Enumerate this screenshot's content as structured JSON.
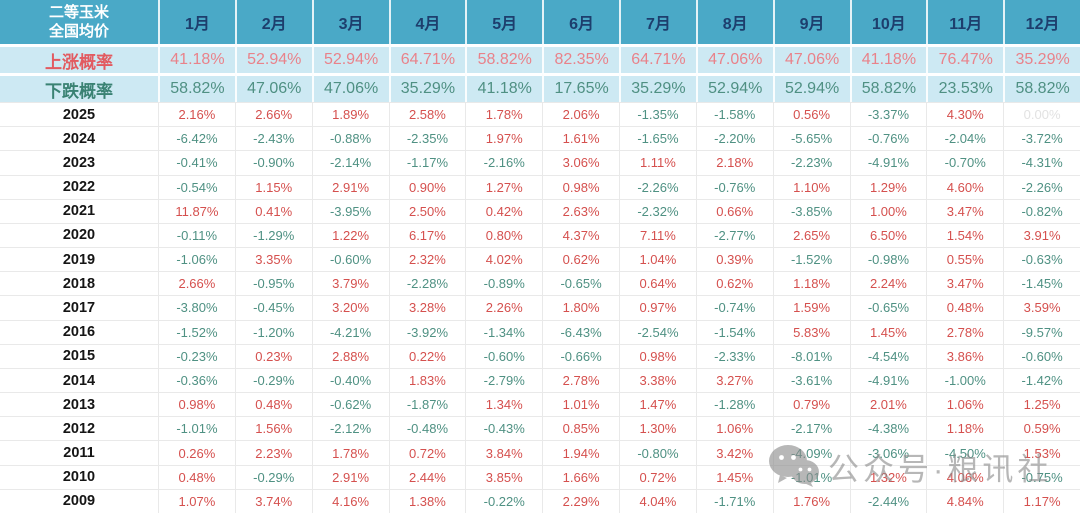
{
  "chart_data": {
    "type": "table",
    "corner_header": {
      "line1": "二等玉米",
      "line2": "全国均价"
    },
    "months": [
      "1月",
      "2月",
      "3月",
      "4月",
      "5月",
      "6月",
      "7月",
      "8月",
      "9月",
      "10月",
      "11月",
      "12月"
    ],
    "rise_probability": {
      "label": "上涨概率",
      "values": [
        "41.18%",
        "52.94%",
        "52.94%",
        "64.71%",
        "58.82%",
        "82.35%",
        "64.71%",
        "47.06%",
        "47.06%",
        "41.18%",
        "76.47%",
        "35.29%"
      ]
    },
    "fall_probability": {
      "label": "下跌概率",
      "values": [
        "58.82%",
        "47.06%",
        "47.06%",
        "35.29%",
        "41.18%",
        "17.65%",
        "35.29%",
        "52.94%",
        "52.94%",
        "58.82%",
        "23.53%",
        "58.82%"
      ]
    },
    "years": [
      {
        "year": "2025",
        "values": [
          "2.16%",
          "2.66%",
          "1.89%",
          "2.58%",
          "1.78%",
          "2.06%",
          "-1.35%",
          "-1.58%",
          "0.56%",
          "-3.37%",
          "4.30%",
          "0.00%"
        ]
      },
      {
        "year": "2024",
        "values": [
          "-6.42%",
          "-2.43%",
          "-0.88%",
          "-2.35%",
          "1.97%",
          "1.61%",
          "-1.65%",
          "-2.20%",
          "-5.65%",
          "-0.76%",
          "-2.04%",
          "-3.72%"
        ]
      },
      {
        "year": "2023",
        "values": [
          "-0.41%",
          "-0.90%",
          "-2.14%",
          "-1.17%",
          "-2.16%",
          "3.06%",
          "1.11%",
          "2.18%",
          "-2.23%",
          "-4.91%",
          "-0.70%",
          "-4.31%"
        ]
      },
      {
        "year": "2022",
        "values": [
          "-0.54%",
          "1.15%",
          "2.91%",
          "0.90%",
          "1.27%",
          "0.98%",
          "-2.26%",
          "-0.76%",
          "1.10%",
          "1.29%",
          "4.60%",
          "-2.26%"
        ]
      },
      {
        "year": "2021",
        "values": [
          "11.87%",
          "0.41%",
          "-3.95%",
          "2.50%",
          "0.42%",
          "2.63%",
          "-2.32%",
          "0.66%",
          "-3.85%",
          "1.00%",
          "3.47%",
          "-0.82%"
        ]
      },
      {
        "year": "2020",
        "values": [
          "-0.11%",
          "-1.29%",
          "1.22%",
          "6.17%",
          "0.80%",
          "4.37%",
          "7.11%",
          "-2.77%",
          "2.65%",
          "6.50%",
          "1.54%",
          "3.91%"
        ]
      },
      {
        "year": "2019",
        "values": [
          "-1.06%",
          "3.35%",
          "-0.60%",
          "2.32%",
          "4.02%",
          "0.62%",
          "1.04%",
          "0.39%",
          "-1.52%",
          "-0.98%",
          "0.55%",
          "-0.63%"
        ]
      },
      {
        "year": "2018",
        "values": [
          "2.66%",
          "-0.95%",
          "3.79%",
          "-2.28%",
          "-0.89%",
          "-0.65%",
          "0.64%",
          "0.62%",
          "1.18%",
          "2.24%",
          "3.47%",
          "-1.45%"
        ]
      },
      {
        "year": "2017",
        "values": [
          "-3.80%",
          "-0.45%",
          "3.20%",
          "3.28%",
          "2.26%",
          "1.80%",
          "0.97%",
          "-0.74%",
          "1.59%",
          "-0.65%",
          "0.48%",
          "3.59%"
        ]
      },
      {
        "year": "2016",
        "values": [
          "-1.52%",
          "-1.20%",
          "-4.21%",
          "-3.92%",
          "-1.34%",
          "-6.43%",
          "-2.54%",
          "-1.54%",
          "5.83%",
          "1.45%",
          "2.78%",
          "-9.57%"
        ]
      },
      {
        "year": "2015",
        "values": [
          "-0.23%",
          "0.23%",
          "2.88%",
          "0.22%",
          "-0.60%",
          "-0.66%",
          "0.98%",
          "-2.33%",
          "-8.01%",
          "-4.54%",
          "3.86%",
          "-0.60%"
        ]
      },
      {
        "year": "2014",
        "values": [
          "-0.36%",
          "-0.29%",
          "-0.40%",
          "1.83%",
          "-2.79%",
          "2.78%",
          "3.38%",
          "3.27%",
          "-3.61%",
          "-4.91%",
          "-1.00%",
          "-1.42%"
        ]
      },
      {
        "year": "2013",
        "values": [
          "0.98%",
          "0.48%",
          "-0.62%",
          "-1.87%",
          "1.34%",
          "1.01%",
          "1.47%",
          "-1.28%",
          "0.79%",
          "2.01%",
          "1.06%",
          "1.25%"
        ]
      },
      {
        "year": "2012",
        "values": [
          "-1.01%",
          "1.56%",
          "-2.12%",
          "-0.48%",
          "-0.43%",
          "0.85%",
          "1.30%",
          "1.06%",
          "-2.17%",
          "-4.38%",
          "1.18%",
          "0.59%"
        ]
      },
      {
        "year": "2011",
        "values": [
          "0.26%",
          "2.23%",
          "1.78%",
          "0.72%",
          "3.84%",
          "1.94%",
          "-0.80%",
          "3.42%",
          "-4.09%",
          "-3.06%",
          "-4.50%",
          "1.53%"
        ]
      },
      {
        "year": "2010",
        "values": [
          "0.48%",
          "-0.29%",
          "2.91%",
          "2.44%",
          "3.85%",
          "1.66%",
          "0.72%",
          "1.45%",
          "-1.01%",
          "1.32%",
          "4.06%",
          "-0.75%"
        ]
      },
      {
        "year": "2009",
        "values": [
          "1.07%",
          "3.74%",
          "4.16%",
          "1.38%",
          "-0.22%",
          "2.29%",
          "4.04%",
          "-1.71%",
          "1.76%",
          "-2.44%",
          "4.84%",
          "1.17%"
        ]
      }
    ]
  },
  "watermark": {
    "text": "公众号·粮讯社",
    "icon": "wechat-logo"
  },
  "colors": {
    "header_bg": "#4aa9c7",
    "month_text": "#1d3e6d",
    "prob_bg": "#cde9f3",
    "rise_label": "#e25a60",
    "rise_value": "#e9828a",
    "fall_label": "#3a8273",
    "fall_value": "#4f9083",
    "positive": "#d5504e",
    "negative": "#4f9183",
    "zero": "#e2e2e2",
    "grid_line": "#e9e9e9",
    "watermark": "#8c8c8c"
  }
}
